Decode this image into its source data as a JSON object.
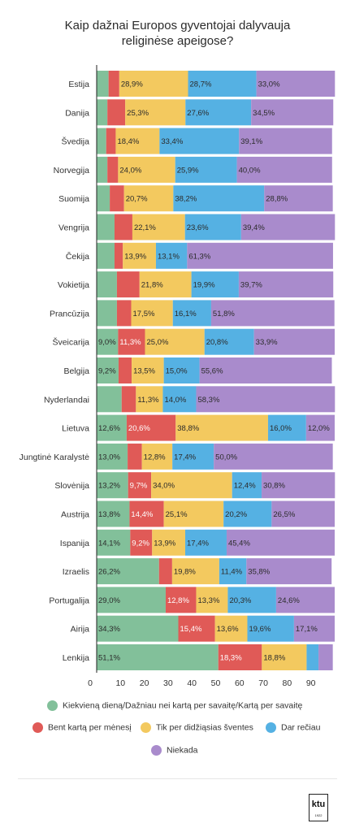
{
  "title_lines": [
    "Kaip dažnai Europos gyventojai dalyvauja",
    "religinėse apeigose?"
  ],
  "colors": {
    "daily": "#82c09a",
    "monthly": "#e05a57",
    "holidays": "#f3c95f",
    "rarely": "#55b1e3",
    "never": "#a98bcc"
  },
  "legend": [
    {
      "key": "daily",
      "label": "Kiekvieną dieną/Dažniau nei kartą per savaitę/Kartą per savaitę"
    },
    {
      "key": "monthly",
      "label": "Bent kartą per mėnesį"
    },
    {
      "key": "holidays",
      "label": "Tik per didžiąsias šventes"
    },
    {
      "key": "rarely",
      "label": "Dar rečiau"
    },
    {
      "key": "never",
      "label": "Niekada"
    }
  ],
  "logo": {
    "text": "ktu",
    "subtext": "1922"
  },
  "chart_data": {
    "type": "bar",
    "orientation": "horizontal",
    "stacked": true,
    "title": "Kaip dažnai Europos gyventojai dalyvauja religinėse apeigose?",
    "xlim": [
      0,
      100
    ],
    "xticks": [
      0,
      10,
      20,
      30,
      40,
      50,
      60,
      70,
      80,
      90
    ],
    "categories": [
      "Estija",
      "Danija",
      "Švedija",
      "Norvegija",
      "Suomija",
      "Vengrija",
      "Čekija",
      "Vokietija",
      "Prancūzija",
      "Šveicarija",
      "Belgija",
      "Nyderlandai",
      "Lietuva",
      "Jungtinė Karalystė",
      "Slovėnija",
      "Austrija",
      "Ispanija",
      "Izraelis",
      "Portugalija",
      "Airija",
      "Lenkija"
    ],
    "series": [
      {
        "key": "daily",
        "name": "Kiekvieną dieną/Dažniau nei kartą per savaitę/Kartą per savaitę",
        "values": [
          5.0,
          4.5,
          4.0,
          4.5,
          5.5,
          7.5,
          7.5,
          8.5,
          8.5,
          9.0,
          9.2,
          10.5,
          12.6,
          13.0,
          13.2,
          13.8,
          14.1,
          26.2,
          29.0,
          34.3,
          51.1
        ]
      },
      {
        "key": "monthly",
        "name": "Bent kartą per mėnesį",
        "values": [
          4.5,
          7.5,
          4.0,
          4.5,
          6.0,
          7.5,
          3.5,
          9.5,
          6.0,
          11.3,
          5.5,
          6.0,
          20.6,
          6.0,
          9.7,
          14.4,
          9.2,
          5.5,
          12.8,
          15.4,
          18.3
        ]
      },
      {
        "key": "holidays",
        "name": "Tik per didžiąsias šventes",
        "values": [
          28.9,
          25.3,
          18.4,
          24.0,
          20.7,
          22.1,
          13.9,
          21.8,
          17.5,
          25.0,
          13.5,
          11.3,
          38.8,
          12.8,
          34.0,
          25.1,
          13.9,
          19.8,
          13.3,
          13.6,
          18.8
        ]
      },
      {
        "key": "rarely",
        "name": "Dar rečiau",
        "values": [
          28.7,
          27.6,
          33.4,
          25.9,
          38.2,
          23.6,
          13.1,
          19.9,
          16.1,
          20.8,
          15.0,
          14.0,
          16.0,
          17.4,
          12.4,
          20.2,
          17.4,
          11.4,
          20.3,
          19.6,
          5.0
        ]
      },
      {
        "key": "never",
        "name": "Niekada",
        "values": [
          33.0,
          34.5,
          39.1,
          40.0,
          28.8,
          39.4,
          61.3,
          39.7,
          51.8,
          33.9,
          55.6,
          58.3,
          12.0,
          50.0,
          30.8,
          26.5,
          45.4,
          35.8,
          24.6,
          17.1,
          6.0
        ]
      }
    ],
    "labels": [
      [
        "",
        "",
        "28,9%",
        "28,7%",
        "33,0%"
      ],
      [
        "",
        "",
        "25,3%",
        "27,6%",
        "34,5%"
      ],
      [
        "",
        "",
        "18,4%",
        "33,4%",
        "39,1%"
      ],
      [
        "",
        "",
        "24,0%",
        "25,9%",
        "40,0%"
      ],
      [
        "",
        "",
        "20,7%",
        "38,2%",
        "28,8%"
      ],
      [
        "",
        "",
        "22,1%",
        "23,6%",
        "39,4%"
      ],
      [
        "",
        "",
        "13,9%",
        "13,1%",
        "61,3%"
      ],
      [
        "",
        "",
        "21,8%",
        "19,9%",
        "39,7%"
      ],
      [
        "",
        "",
        "17,5%",
        "16,1%",
        "51,8%"
      ],
      [
        "9,0%",
        "11,3%",
        "25,0%",
        "20,8%",
        "33,9%"
      ],
      [
        "9,2%",
        "",
        "13,5%",
        "15,0%",
        "55,6%"
      ],
      [
        "",
        "",
        "11,3%",
        "14,0%",
        "58,3%"
      ],
      [
        "12,6%",
        "20,6%",
        "38,8%",
        "16,0%",
        "12,0%"
      ],
      [
        "13,0%",
        "",
        "12,8%",
        "17,4%",
        "50,0%"
      ],
      [
        "13,2%",
        "9,7%",
        "34,0%",
        "12,4%",
        "30,8%"
      ],
      [
        "13,8%",
        "14,4%",
        "25,1%",
        "20,2%",
        "26,5%"
      ],
      [
        "14,1%",
        "9,2%",
        "13,9%",
        "17,4%",
        "45,4%"
      ],
      [
        "26,2%",
        "",
        "19,8%",
        "11,4%",
        "35,8%"
      ],
      [
        "29,0%",
        "12,8%",
        "13,3%",
        "20,3%",
        "24,6%"
      ],
      [
        "34,3%",
        "15,4%",
        "13,6%",
        "19,6%",
        "17,1%"
      ],
      [
        "51,1%",
        "18,3%",
        "18,8%",
        "",
        ""
      ]
    ]
  }
}
